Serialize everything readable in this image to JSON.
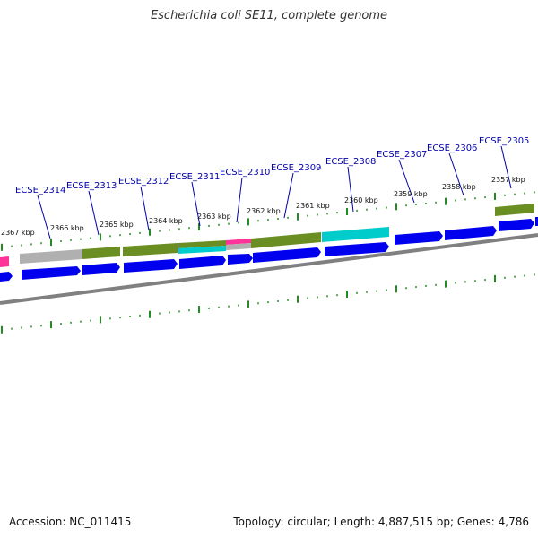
{
  "title": "Escherichia coli SE11, complete genome",
  "footer": {
    "accession": "Accession: NC_011415",
    "summary": "Topology: circular; Length: 4,887,515 bp; Genes: 4,786"
  },
  "colors": {
    "cds": "#0000ee",
    "cog_green": "#6b8e23",
    "cog_gray": "#b0b0b0",
    "cog_cyan": "#00cccc",
    "cog_pink": "#ff3399",
    "backbone": "#808080",
    "tick": "#228b22",
    "label": "#0000aa"
  },
  "gene_labels": [
    "ECSE_2314",
    "ECSE_2313",
    "ECSE_2312",
    "ECSE_2311",
    "ECSE_2310",
    "ECSE_2309",
    "ECSE_2308",
    "ECSE_2307",
    "ECSE_2306",
    "ECSE_2305"
  ],
  "kbp_labels": [
    "2367 kbp",
    "2366 kbp",
    "2365 kbp",
    "2364 kbp",
    "2363 kbp",
    "2362 kbp",
    "2361 kbp",
    "2360 kbp",
    "2359 kbp",
    "2358 kbp",
    "2357 kbp"
  ]
}
